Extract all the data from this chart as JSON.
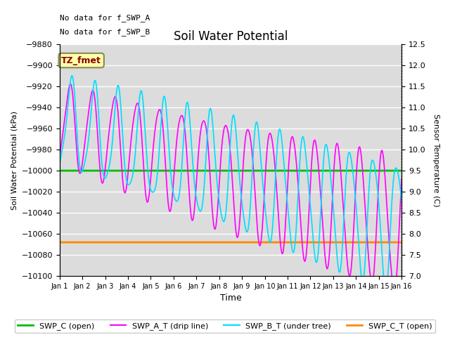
{
  "title": "Soil Water Potential",
  "xlabel": "Time",
  "ylabel_left": "Soil Water Potential (kPa)",
  "ylabel_right": "Sensor Temperature (C)",
  "ylim_left": [
    -10100,
    -9880
  ],
  "ylim_right": [
    7.0,
    12.5
  ],
  "yticks_left": [
    -10100,
    -10080,
    -10060,
    -10040,
    -10020,
    -10000,
    -9980,
    -9960,
    -9940,
    -9920,
    -9900,
    -9880
  ],
  "yticks_right": [
    7.0,
    7.5,
    8.0,
    8.5,
    9.0,
    9.5,
    10.0,
    10.5,
    11.0,
    11.5,
    12.0,
    12.5
  ],
  "xlim": [
    0,
    15
  ],
  "annotation_text1": "No data for f_SWP_A",
  "annotation_text2": "No data for f_SWP_B",
  "box_label": "TZ_fmet",
  "swp_c_value": -10000,
  "swp_c_t_value": -10068,
  "color_swp_c": "#00bb00",
  "color_swp_a_t": "#ff00ff",
  "color_swp_b_t": "#00ddff",
  "color_swp_c_t": "#ff8800",
  "legend_labels": [
    "SWP_C (open)",
    "SWP_A_T (drip line)",
    "SWP_B_T (under tree)",
    "SWP_C_T (open)"
  ]
}
